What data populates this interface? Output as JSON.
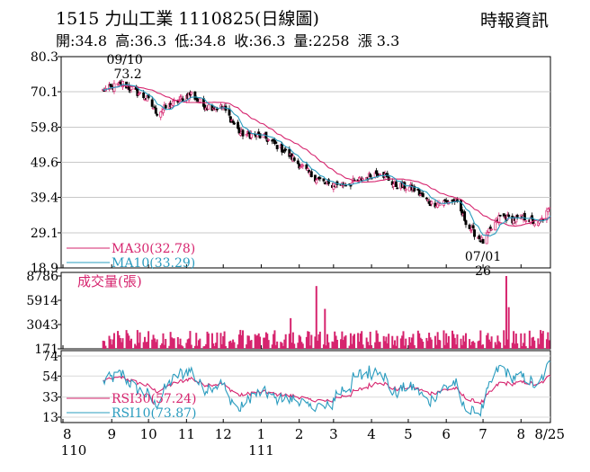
{
  "header": {
    "title": "1515  力山工業 1110825(日線圖)",
    "source": "時報資訊",
    "stats": {
      "open": "開:34.8",
      "high": "高:36.3",
      "low": "低:34.8",
      "close": "收:36.3",
      "volume": "量:2258",
      "change": "漲 3.3"
    }
  },
  "chart_data": {
    "type": "candlestick",
    "price_panel": {
      "y_ticks": [
        "80.3",
        "70.1",
        "59.8",
        "49.6",
        "39.4",
        "29.1",
        "18.9"
      ],
      "ylim": [
        18.9,
        80.3
      ],
      "annotations": [
        {
          "label_date": "09/10",
          "label_value": "73.2",
          "value": 73.2,
          "date": "2021-09-10"
        },
        {
          "label_date": "07/01",
          "label_value": "26",
          "value": 26,
          "date": "2022-07-01"
        }
      ],
      "legend": [
        {
          "label": "MA30(32.78)",
          "color": "#d6246e"
        },
        {
          "label": "MA10(33.29)",
          "color": "#2a9cbf"
        }
      ],
      "candle_up_color": "#d6246e",
      "candle_down_color": "#000000"
    },
    "volume_panel": {
      "title": "成交量(張)",
      "y_ticks": [
        "8786",
        "5914",
        "3043",
        "171"
      ],
      "ylim": [
        171,
        8786
      ],
      "color": "#d6246e"
    },
    "rsi_panel": {
      "y_ticks": [
        "74",
        "54",
        "33",
        "13"
      ],
      "ylim": [
        13,
        74
      ],
      "legend": [
        {
          "label": "RSI30(57.24)",
          "color": "#d6246e"
        },
        {
          "label": "RSI10(73.87)",
          "color": "#2a9cbf"
        }
      ]
    },
    "x_axis": {
      "tick_labels": [
        "8",
        "9",
        "10",
        "11",
        "12",
        "1",
        "2",
        "3",
        "4",
        "5",
        "6",
        "7",
        "8",
        "8/25"
      ],
      "tick_dates": [
        "2021-08-01",
        "2021-09-01",
        "2021-10-01",
        "2021-11-01",
        "2021-12-01",
        "2022-01-01",
        "2022-02-01",
        "2022-03-01",
        "2022-04-01",
        "2022-05-01",
        "2022-06-01",
        "2022-07-01",
        "2022-08-01",
        "2022-08-25"
      ],
      "year_labels": [
        {
          "label": "110",
          "date": "2021-08-01"
        },
        {
          "label": "111",
          "date": "2022-01-01"
        }
      ],
      "date_range": [
        "2021-08-25",
        "2022-08-25"
      ]
    },
    "key_closes": [
      {
        "date": "2021-08-25",
        "value": 70.5
      },
      {
        "date": "2021-09-10",
        "value": 72.5
      },
      {
        "date": "2021-09-30",
        "value": 68.0
      },
      {
        "date": "2021-10-08",
        "value": 64.0
      },
      {
        "date": "2021-10-25",
        "value": 67.5
      },
      {
        "date": "2021-11-05",
        "value": 69.5
      },
      {
        "date": "2021-11-15",
        "value": 66.0
      },
      {
        "date": "2021-12-01",
        "value": 65.5
      },
      {
        "date": "2021-12-15",
        "value": 58.0
      },
      {
        "date": "2022-01-03",
        "value": 57.0
      },
      {
        "date": "2022-01-20",
        "value": 53.0
      },
      {
        "date": "2022-02-10",
        "value": 46.0
      },
      {
        "date": "2022-02-25",
        "value": 43.0
      },
      {
        "date": "2022-03-15",
        "value": 43.5
      },
      {
        "date": "2022-03-30",
        "value": 45.5
      },
      {
        "date": "2022-04-08",
        "value": 47.0
      },
      {
        "date": "2022-04-20",
        "value": 43.0
      },
      {
        "date": "2022-05-05",
        "value": 42.0
      },
      {
        "date": "2022-05-20",
        "value": 37.5
      },
      {
        "date": "2022-06-08",
        "value": 38.5
      },
      {
        "date": "2022-06-20",
        "value": 30.5
      },
      {
        "date": "2022-07-01",
        "value": 26.5
      },
      {
        "date": "2022-07-15",
        "value": 34.0
      },
      {
        "date": "2022-07-25",
        "value": 33.0
      },
      {
        "date": "2022-08-05",
        "value": 33.5
      },
      {
        "date": "2022-08-15",
        "value": 31.5
      },
      {
        "date": "2022-08-25",
        "value": 36.3
      }
    ],
    "volume_spikes": [
      {
        "date": "2022-01-25",
        "value": 3800
      },
      {
        "date": "2022-02-15",
        "value": 7600
      },
      {
        "date": "2022-02-22",
        "value": 4900
      },
      {
        "date": "2022-07-20",
        "value": 8786
      },
      {
        "date": "2022-07-22",
        "value": 5100
      }
    ],
    "volume_base_level": 900
  }
}
